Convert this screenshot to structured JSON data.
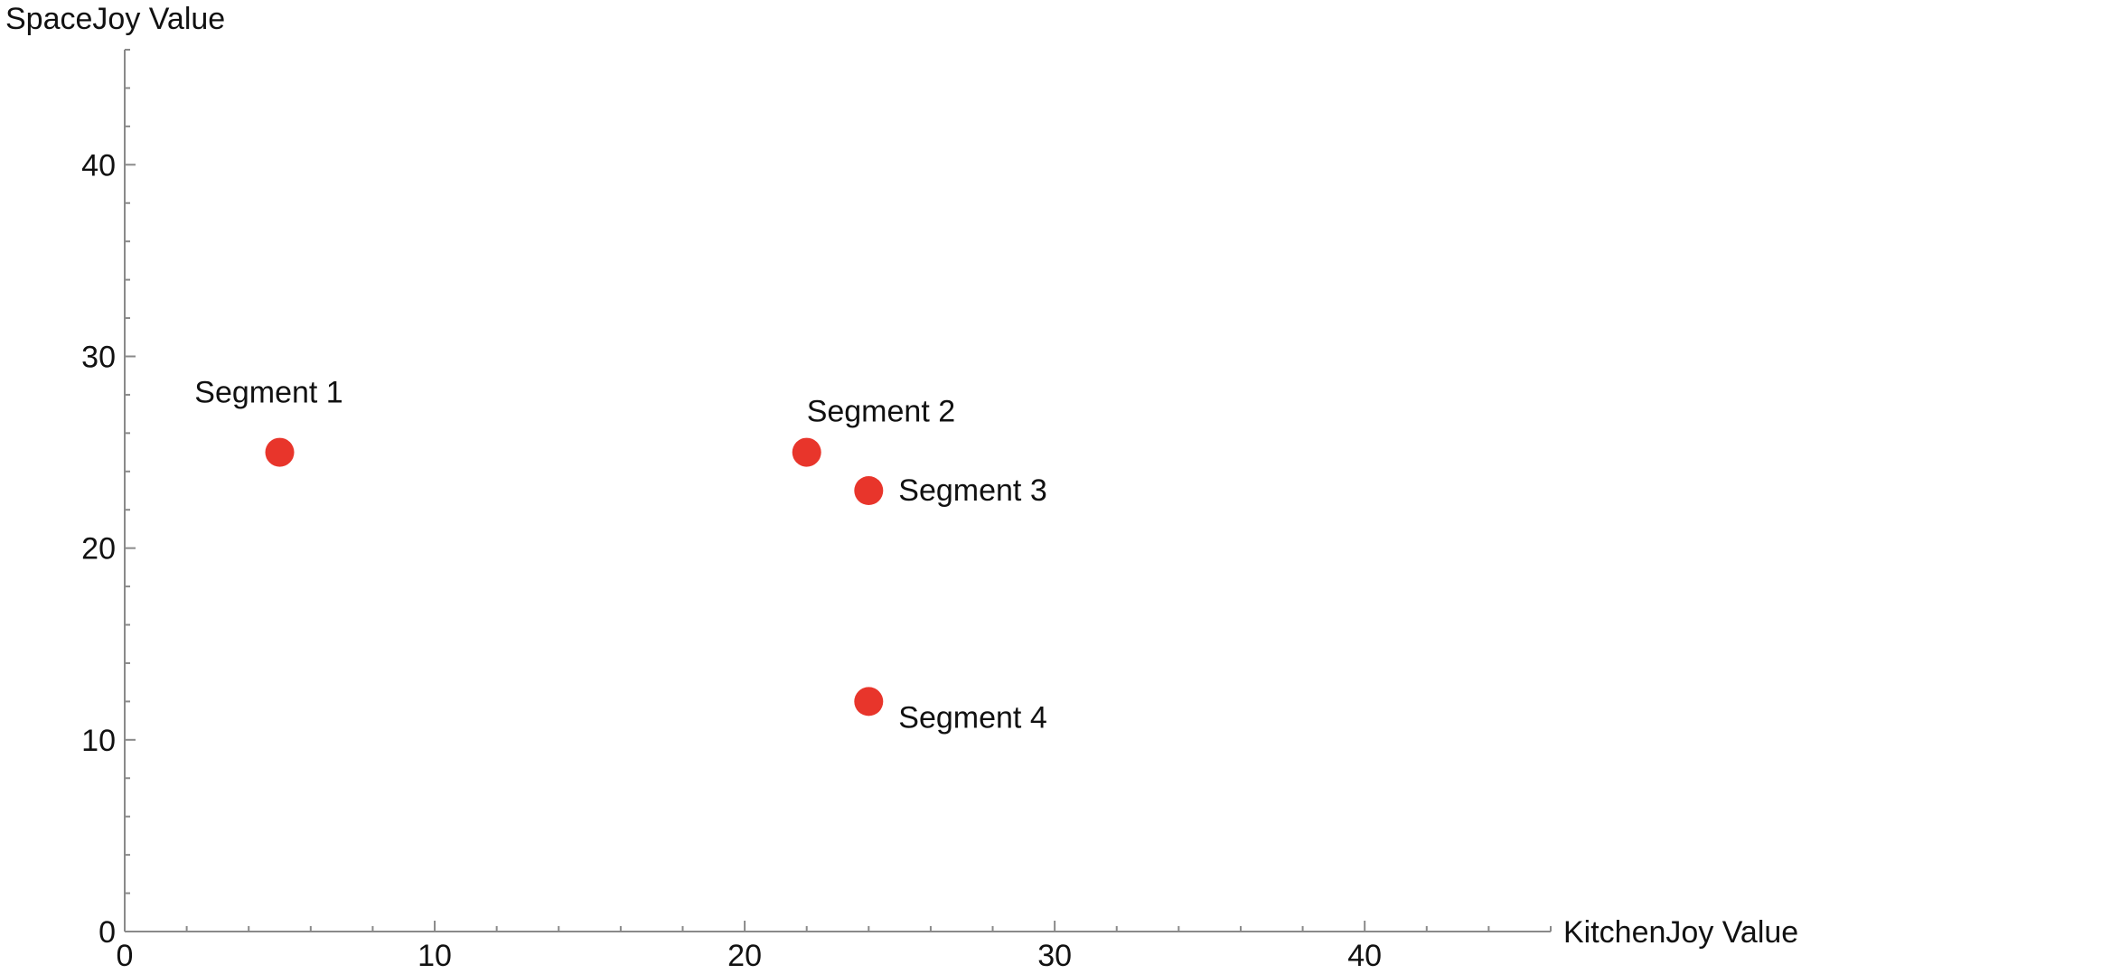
{
  "chart_data": {
    "type": "scatter",
    "title": "",
    "xlabel": "KitchenJoy Value",
    "ylabel": "SpaceJoy Value",
    "xlim": [
      0,
      46
    ],
    "ylim": [
      0,
      46
    ],
    "x_ticks": [
      0,
      10,
      20,
      30,
      40
    ],
    "y_ticks": [
      0,
      10,
      20,
      30,
      40
    ],
    "x_minor_step": 2,
    "y_minor_step": 2,
    "grid": false,
    "point_color": "#e8352b",
    "axis_color": "#8a8a8a",
    "points": [
      {
        "label": "Segment 1",
        "x": 5,
        "y": 25,
        "label_pos": "top"
      },
      {
        "label": "Segment 2",
        "x": 22,
        "y": 25,
        "label_pos": "top-right"
      },
      {
        "label": "Segment 3",
        "x": 24,
        "y": 23,
        "label_pos": "right"
      },
      {
        "label": "Segment 4",
        "x": 24,
        "y": 12,
        "label_pos": "bottom-right"
      }
    ]
  }
}
